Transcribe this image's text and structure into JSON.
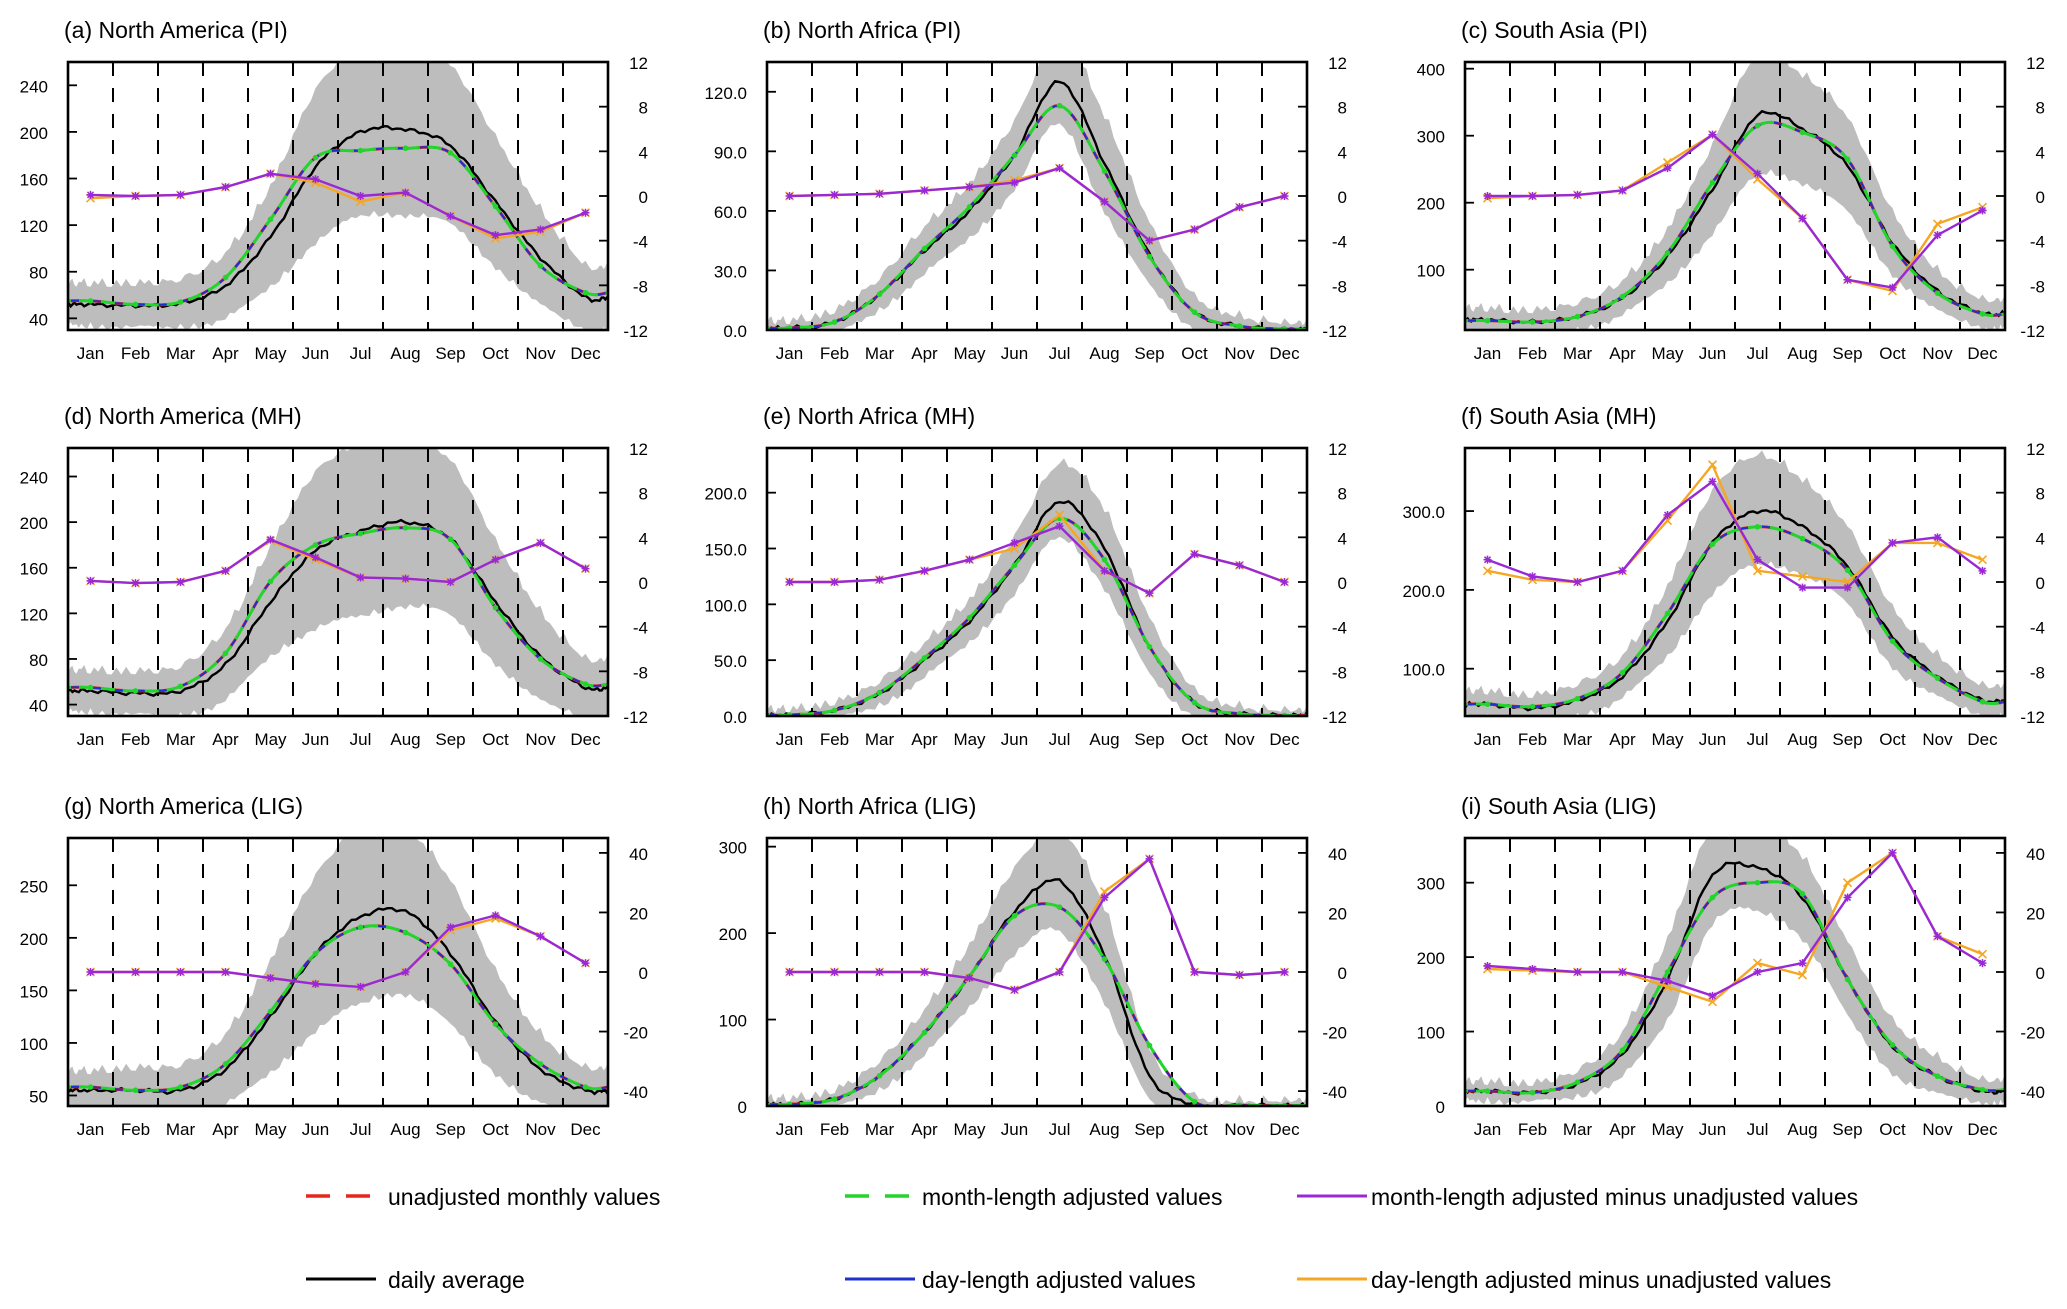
{
  "figure": {
    "months": [
      "Jan",
      "Feb",
      "Mar",
      "Apr",
      "May",
      "Jun",
      "Jul",
      "Aug",
      "Sep",
      "Oct",
      "Nov",
      "Dec"
    ],
    "legend": [
      {
        "key": "unadjusted",
        "label": "unadjusted monthly values",
        "color": "#e8241c",
        "dash": true
      },
      {
        "key": "month_len",
        "label": "month-length adjusted values",
        "color": "#22d52b",
        "dash": true
      },
      {
        "key": "diff_month",
        "label": "month-length adjusted minus unadjusted values",
        "color": "#9a28d6",
        "dash": false
      },
      {
        "key": "daily",
        "label": "daily average",
        "color": "#000000",
        "dash": false
      },
      {
        "key": "day_len",
        "label": "day-length adjusted values",
        "color": "#1f2fd0",
        "dash": false
      },
      {
        "key": "diff_day",
        "label": "day-length adjusted minus unadjusted values",
        "color": "#f5a623",
        "dash": false
      }
    ]
  },
  "chart_data": [
    {
      "type": "line",
      "title": "(a) North America (PI)",
      "ylim": [
        30,
        260
      ],
      "yticks": [
        40,
        80,
        120,
        160,
        200,
        240
      ],
      "ytick_labels": [
        "40",
        "80",
        "120",
        "160",
        "200",
        "240"
      ],
      "y2lim": [
        -12,
        12
      ],
      "y2ticks": [
        -12,
        -8,
        -4,
        0,
        4,
        8,
        12
      ],
      "series": {
        "daily": [
          52,
          51,
          53,
          68,
          110,
          170,
          200,
          202,
          188,
          140,
          92,
          58
        ],
        "band_half": [
          15,
          16,
          17,
          25,
          40,
          62,
          70,
          70,
          65,
          52,
          38,
          24
        ],
        "unadjusted": [
          55,
          52,
          54,
          75,
          125,
          178,
          184,
          186,
          182,
          136,
          85,
          62
        ],
        "month_len": [
          55,
          52,
          54,
          75,
          125,
          178,
          184,
          186,
          182,
          136,
          85,
          62
        ],
        "day_len": [
          55,
          52,
          54,
          75,
          125,
          178,
          184,
          186,
          182,
          136,
          85,
          62
        ],
        "diff_month": [
          0.1,
          0,
          0.1,
          0.8,
          2,
          1.5,
          0,
          0.3,
          -1.8,
          -3.5,
          -3,
          -1.5
        ],
        "diff_day": [
          -0.2,
          0,
          0.1,
          0.8,
          2,
          1.2,
          -0.5,
          0.3,
          -1.8,
          -3.8,
          -3.2,
          -1.5
        ]
      }
    },
    {
      "type": "line",
      "title": "(b) North Africa (PI)",
      "ylim": [
        0,
        135
      ],
      "yticks": [
        0,
        30,
        60,
        90,
        120
      ],
      "ytick_labels": [
        "0.0",
        "30.0",
        "60.0",
        "90.0",
        "120.0"
      ],
      "y2lim": [
        -12,
        12
      ],
      "y2ticks": [
        -12,
        -8,
        -4,
        0,
        4,
        8,
        12
      ],
      "series": {
        "daily": [
          1,
          4,
          18,
          40,
          60,
          88,
          125,
          84,
          38,
          9,
          2,
          0.5
        ],
        "band_half": [
          2,
          4,
          6,
          10,
          12,
          15,
          20,
          22,
          14,
          6,
          3,
          1
        ],
        "unadjusted": [
          1,
          4,
          18,
          41,
          62,
          88,
          113,
          80,
          37,
          9,
          2,
          0.5
        ],
        "month_len": [
          1,
          4,
          18,
          41,
          62,
          88,
          113,
          80,
          37,
          9,
          2,
          0.5
        ],
        "day_len": [
          1,
          4,
          18,
          41,
          62,
          88,
          113,
          80,
          37,
          9,
          2,
          0.5
        ],
        "diff_month": [
          0,
          0.1,
          0.2,
          0.5,
          0.8,
          1.2,
          2.5,
          -0.5,
          -4,
          -3,
          -1,
          0
        ],
        "diff_day": [
          0,
          0.1,
          0.2,
          0.5,
          0.8,
          1.4,
          2.5,
          -0.5,
          -4,
          -3,
          -1,
          0
        ]
      }
    },
    {
      "type": "line",
      "title": "(c) South Asia (PI)",
      "ylim": [
        10,
        410
      ],
      "yticks": [
        100,
        200,
        300,
        400
      ],
      "ytick_labels": [
        "100",
        "200",
        "300",
        "400"
      ],
      "y2lim": [
        -12,
        12
      ],
      "y2ticks": [
        -12,
        -8,
        -4,
        0,
        4,
        8,
        12
      ],
      "series": {
        "daily": [
          25,
          22,
          30,
          58,
          120,
          220,
          330,
          310,
          255,
          140,
          68,
          35
        ],
        "band_half": [
          12,
          12,
          14,
          20,
          35,
          60,
          85,
          75,
          65,
          40,
          25,
          15
        ],
        "unadjusted": [
          24,
          22,
          30,
          60,
          125,
          230,
          315,
          305,
          265,
          135,
          65,
          34
        ],
        "month_len": [
          24,
          22,
          30,
          60,
          125,
          230,
          315,
          305,
          265,
          135,
          65,
          34
        ],
        "day_len": [
          24,
          22,
          30,
          60,
          125,
          230,
          315,
          305,
          265,
          135,
          65,
          34
        ],
        "diff_month": [
          0,
          0,
          0.1,
          0.5,
          2.5,
          5.5,
          2,
          -2,
          -7.5,
          -8.2,
          -3.5,
          -1.3
        ],
        "diff_day": [
          -0.2,
          0,
          0.1,
          0.5,
          3,
          5.5,
          1.5,
          -2,
          -7.5,
          -8.5,
          -2.5,
          -1
        ]
      }
    },
    {
      "type": "line",
      "title": "(d) North America (MH)",
      "ylim": [
        30,
        265
      ],
      "yticks": [
        40,
        80,
        120,
        160,
        200,
        240
      ],
      "ytick_labels": [
        "40",
        "80",
        "120",
        "160",
        "200",
        "240"
      ],
      "y2lim": [
        -12,
        12
      ],
      "y2ticks": [
        -12,
        -8,
        -4,
        0,
        4,
        8,
        12
      ],
      "series": {
        "daily": [
          52,
          50,
          52,
          75,
          130,
          175,
          192,
          200,
          185,
          130,
          82,
          55
        ],
        "band_half": [
          15,
          16,
          18,
          28,
          45,
          65,
          72,
          70,
          65,
          50,
          36,
          22
        ],
        "unadjusted": [
          55,
          52,
          56,
          85,
          148,
          180,
          190,
          195,
          185,
          125,
          80,
          58
        ],
        "month_len": [
          55,
          52,
          56,
          85,
          148,
          180,
          190,
          195,
          185,
          125,
          80,
          58
        ],
        "day_len": [
          55,
          52,
          56,
          85,
          148,
          180,
          190,
          195,
          185,
          125,
          80,
          58
        ],
        "diff_month": [
          0.1,
          -0.1,
          0,
          1,
          3.8,
          2.2,
          0.4,
          0.3,
          0,
          2,
          3.5,
          1.2
        ],
        "diff_day": [
          0.1,
          -0.1,
          0,
          1,
          3.7,
          2,
          0.4,
          0.3,
          0,
          2,
          3.5,
          1.2
        ]
      }
    },
    {
      "type": "line",
      "title": "(e) North Africa (MH)",
      "ylim": [
        0,
        240
      ],
      "yticks": [
        0,
        50,
        100,
        150,
        200
      ],
      "ytick_labels": [
        "0.0",
        "50.0",
        "100.0",
        "150.0",
        "200.0"
      ],
      "y2lim": [
        -12,
        12
      ],
      "y2ticks": [
        -12,
        -8,
        -4,
        0,
        4,
        8,
        12
      ],
      "series": {
        "daily": [
          1,
          5,
          20,
          50,
          85,
          135,
          192,
          150,
          62,
          12,
          2,
          0.5
        ],
        "band_half": [
          2,
          4,
          7,
          12,
          16,
          22,
          30,
          32,
          22,
          8,
          3,
          1
        ],
        "unadjusted": [
          1,
          5,
          21,
          52,
          88,
          135,
          177,
          140,
          62,
          12,
          2,
          0.5
        ],
        "month_len": [
          1,
          5,
          21,
          52,
          88,
          135,
          177,
          140,
          62,
          12,
          2,
          0.5
        ],
        "day_len": [
          1,
          5,
          21,
          52,
          88,
          135,
          177,
          140,
          62,
          12,
          2,
          0.5
        ],
        "diff_month": [
          0,
          0,
          0.2,
          1,
          2,
          3.5,
          5,
          1,
          -1,
          2.5,
          1.5,
          0
        ],
        "diff_day": [
          0,
          0,
          0.2,
          1,
          2,
          3,
          6,
          1,
          -1,
          2.5,
          1.5,
          0
        ]
      }
    },
    {
      "type": "line",
      "title": "(f) South Asia (MH)",
      "ylim": [
        40,
        380
      ],
      "yticks": [
        100,
        200,
        300
      ],
      "ytick_labels": [
        "100.0",
        "200.0",
        "300.0"
      ],
      "y2lim": [
        -12,
        12
      ],
      "y2ticks": [
        -12,
        -8,
        -4,
        0,
        4,
        8,
        12
      ],
      "series": {
        "daily": [
          55,
          50,
          60,
          90,
          160,
          260,
          300,
          280,
          230,
          140,
          90,
          60
        ],
        "band_half": [
          12,
          12,
          15,
          22,
          40,
          60,
          65,
          55,
          45,
          32,
          22,
          14
        ],
        "unadjusted": [
          55,
          52,
          62,
          95,
          170,
          258,
          280,
          265,
          225,
          135,
          88,
          58
        ],
        "month_len": [
          55,
          52,
          62,
          95,
          170,
          258,
          280,
          265,
          225,
          135,
          88,
          58
        ],
        "day_len": [
          55,
          52,
          62,
          95,
          170,
          258,
          280,
          265,
          225,
          135,
          88,
          58
        ],
        "diff_month": [
          2,
          0.5,
          0,
          1,
          6,
          9,
          2,
          -0.5,
          -0.5,
          3.5,
          4,
          1
        ],
        "diff_day": [
          1,
          0.2,
          0,
          1,
          5.5,
          10.5,
          1,
          0.5,
          0,
          3.5,
          3.5,
          2
        ]
      }
    },
    {
      "type": "line",
      "title": "(g) North America (LIG)",
      "ylim": [
        40,
        295
      ],
      "yticks": [
        50,
        100,
        150,
        200,
        250
      ],
      "ytick_labels": [
        "50",
        "100",
        "150",
        "200",
        "250"
      ],
      "y2lim": [
        -45,
        45
      ],
      "y2ticks": [
        -40,
        -20,
        0,
        20,
        40
      ],
      "series": {
        "daily": [
          55,
          55,
          55,
          75,
          125,
          185,
          220,
          225,
          185,
          120,
          75,
          55
        ],
        "band_half": [
          15,
          18,
          20,
          30,
          50,
          70,
          80,
          75,
          65,
          45,
          30,
          18
        ],
        "unadjusted": [
          58,
          55,
          58,
          80,
          130,
          185,
          210,
          205,
          175,
          118,
          80,
          58
        ],
        "month_len": [
          58,
          55,
          58,
          80,
          130,
          185,
          210,
          205,
          175,
          118,
          80,
          58
        ],
        "day_len": [
          58,
          55,
          58,
          80,
          130,
          185,
          210,
          205,
          175,
          118,
          80,
          58
        ],
        "diff_month": [
          0,
          0,
          0,
          0,
          -2,
          -4,
          -5,
          0,
          15,
          19,
          12,
          3
        ],
        "diff_day": [
          0,
          0,
          0,
          0,
          -2,
          -4,
          -5,
          0,
          14,
          18,
          12,
          3
        ]
      }
    },
    {
      "type": "line",
      "title": "(h) North Africa (LIG)",
      "ylim": [
        0,
        310
      ],
      "yticks": [
        0,
        100,
        200,
        300
      ],
      "ytick_labels": [
        "0",
        "100",
        "200",
        "300"
      ],
      "y2lim": [
        -45,
        45
      ],
      "y2ticks": [
        -40,
        -20,
        0,
        20,
        40
      ],
      "series": {
        "daily": [
          2,
          8,
          35,
          85,
          150,
          225,
          260,
          175,
          35,
          2,
          0.5,
          0.5
        ],
        "band_half": [
          3,
          6,
          12,
          22,
          32,
          45,
          55,
          50,
          25,
          5,
          1,
          1
        ],
        "unadjusted": [
          2,
          8,
          35,
          85,
          150,
          220,
          230,
          170,
          70,
          5,
          1,
          0.5
        ],
        "month_len": [
          2,
          8,
          35,
          85,
          150,
          220,
          230,
          170,
          70,
          5,
          1,
          0.5
        ],
        "day_len": [
          2,
          8,
          35,
          85,
          150,
          220,
          230,
          170,
          70,
          5,
          1,
          0.5
        ],
        "diff_month": [
          0,
          0,
          0,
          0,
          -2,
          -6,
          0,
          25,
          38,
          0,
          -1,
          0
        ],
        "diff_day": [
          0,
          0,
          0,
          0,
          -2,
          -6,
          0,
          27,
          38,
          0,
          -1,
          0
        ]
      }
    },
    {
      "type": "line",
      "title": "(i) South Asia (LIG)",
      "ylim": [
        0,
        360
      ],
      "yticks": [
        0,
        100,
        200,
        300
      ],
      "ytick_labels": [
        "0",
        "100",
        "200",
        "300"
      ],
      "y2lim": [
        -45,
        45
      ],
      "y2ticks": [
        -40,
        -20,
        0,
        20,
        40
      ],
      "series": {
        "daily": [
          20,
          18,
          30,
          70,
          170,
          310,
          320,
          280,
          170,
          80,
          40,
          20
        ],
        "band_half": [
          8,
          8,
          12,
          25,
          50,
          60,
          55,
          50,
          45,
          30,
          20,
          10
        ],
        "unadjusted": [
          20,
          18,
          32,
          75,
          180,
          280,
          300,
          285,
          170,
          82,
          40,
          22
        ],
        "month_len": [
          20,
          18,
          32,
          75,
          180,
          280,
          300,
          285,
          170,
          82,
          40,
          22
        ],
        "day_len": [
          20,
          18,
          32,
          75,
          180,
          280,
          300,
          285,
          170,
          82,
          40,
          22
        ],
        "diff_month": [
          2,
          1,
          0,
          0,
          -3,
          -8,
          0,
          3,
          25,
          40,
          12,
          3
        ],
        "diff_day": [
          1,
          0.5,
          0,
          0,
          -5,
          -10,
          3,
          -1,
          30,
          40,
          12,
          6
        ]
      }
    }
  ]
}
